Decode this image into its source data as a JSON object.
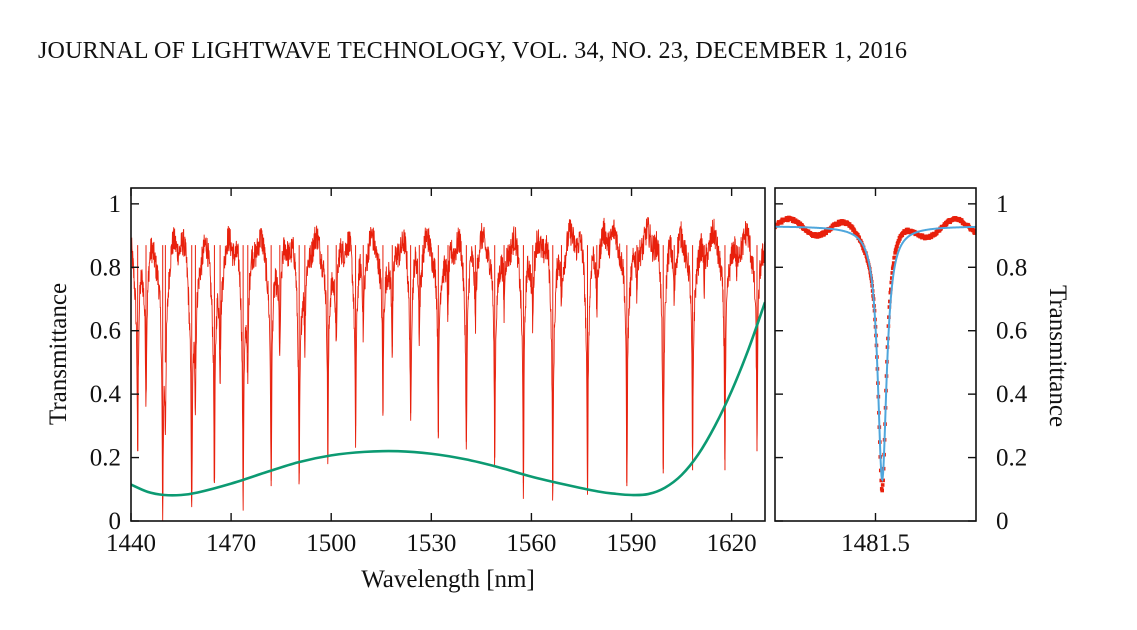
{
  "header": {
    "running_title": "JOURNAL OF LIGHTWAVE TECHNOLOGY, VOL. 34, NO. 23, DECEMBER 1, 2016"
  },
  "colors": {
    "measured": "#e8200c",
    "envelope": "#0c9a72",
    "fit": "#4fa6dc",
    "axes": "#111111"
  },
  "chart_data": [
    {
      "type": "line",
      "xlabel": "Wavelength [nm]",
      "ylabel": "Transmittance",
      "xlim": [
        1440,
        1630
      ],
      "ylim": [
        0,
        1.05
      ],
      "x_ticks": [
        1440,
        1470,
        1500,
        1530,
        1560,
        1590,
        1620
      ],
      "y_ticks": [
        0,
        0.2,
        0.4,
        0.6,
        0.8,
        1
      ],
      "y_tick_labels": [
        "0",
        "0.2",
        "0.4",
        "0.6",
        "0.8",
        "1"
      ],
      "series": [
        {
          "style": "noisy-transmission",
          "color": "#e8200c",
          "baseline": 0.92,
          "resonances": [
            {
              "x": 1442.0,
              "min": 0.22
            },
            {
              "x": 1444.5,
              "min": 0.45
            },
            {
              "x": 1449.5,
              "min": 0.07
            },
            {
              "x": 1450.3,
              "min": 0.5
            },
            {
              "x": 1458.2,
              "min": 0.1
            },
            {
              "x": 1459.3,
              "min": 0.48
            },
            {
              "x": 1465.0,
              "min": 0.13
            },
            {
              "x": 1466.7,
              "min": 0.54
            },
            {
              "x": 1473.6,
              "min": 0.13
            },
            {
              "x": 1475.0,
              "min": 0.53
            },
            {
              "x": 1482.0,
              "min": 0.11
            },
            {
              "x": 1484.6,
              "min": 0.56
            },
            {
              "x": 1490.4,
              "min": 0.15
            },
            {
              "x": 1492.1,
              "min": 0.6
            },
            {
              "x": 1499.0,
              "min": 0.2
            },
            {
              "x": 1501.5,
              "min": 0.57
            },
            {
              "x": 1507.3,
              "min": 0.3
            },
            {
              "x": 1509.6,
              "min": 0.63
            },
            {
              "x": 1515.5,
              "min": 0.34
            },
            {
              "x": 1518.3,
              "min": 0.55
            },
            {
              "x": 1523.8,
              "min": 0.34
            },
            {
              "x": 1526.4,
              "min": 0.63
            },
            {
              "x": 1532.1,
              "min": 0.28
            },
            {
              "x": 1535.0,
              "min": 0.65
            },
            {
              "x": 1540.5,
              "min": 0.25
            },
            {
              "x": 1543.2,
              "min": 0.68
            },
            {
              "x": 1549.0,
              "min": 0.2
            },
            {
              "x": 1551.8,
              "min": 0.67
            },
            {
              "x": 1557.6,
              "min": 0.12
            },
            {
              "x": 1560.4,
              "min": 0.68
            },
            {
              "x": 1566.4,
              "min": 0.11
            },
            {
              "x": 1569.0,
              "min": 0.7
            },
            {
              "x": 1576.8,
              "min": 0.12
            },
            {
              "x": 1579.6,
              "min": 0.72
            },
            {
              "x": 1588.6,
              "min": 0.11
            },
            {
              "x": 1591.6,
              "min": 0.73
            },
            {
              "x": 1599.5,
              "min": 0.15
            },
            {
              "x": 1602.8,
              "min": 0.74
            },
            {
              "x": 1608.3,
              "min": 0.16
            },
            {
              "x": 1611.8,
              "min": 0.75
            },
            {
              "x": 1618.0,
              "min": 0.16
            },
            {
              "x": 1621.5,
              "min": 0.77
            },
            {
              "x": 1627.6,
              "min": 0.22
            }
          ]
        },
        {
          "style": "smooth",
          "color": "#0c9a72",
          "x": [
            1440,
            1445,
            1450,
            1455,
            1460,
            1470,
            1480,
            1490,
            1500,
            1510,
            1520,
            1530,
            1540,
            1550,
            1560,
            1570,
            1580,
            1585,
            1590,
            1595,
            1600,
            1605,
            1610,
            1615,
            1620,
            1625,
            1630
          ],
          "y": [
            0.115,
            0.092,
            0.082,
            0.082,
            0.09,
            0.118,
            0.152,
            0.185,
            0.207,
            0.218,
            0.22,
            0.212,
            0.195,
            0.17,
            0.14,
            0.115,
            0.093,
            0.086,
            0.082,
            0.085,
            0.105,
            0.145,
            0.21,
            0.3,
            0.41,
            0.54,
            0.69
          ]
        }
      ]
    },
    {
      "type": "line",
      "xlabel": "",
      "ylabel": "Transmittance",
      "xlim": [
        1481.38,
        1481.62
      ],
      "ylim": [
        0,
        1.05
      ],
      "x_ticks": [
        1481.5
      ],
      "x_tick_labels": [
        "1481.5"
      ],
      "y_ticks": [
        0,
        0.2,
        0.4,
        0.6,
        0.8,
        1
      ],
      "y_tick_labels": [
        "0",
        "0.2",
        "0.4",
        "0.6",
        "0.8",
        "1"
      ],
      "series": [
        {
          "style": "markers",
          "color": "#e8200c",
          "center": 1481.508,
          "linewidth": 0.006,
          "dip_min": 0.11,
          "baseline": 0.93,
          "ripple": 0.025
        },
        {
          "style": "lorentzian-fit",
          "color": "#4fa6dc",
          "center": 1481.508,
          "linewidth": 0.0065,
          "dip_min": 0.13,
          "baseline": 0.93
        }
      ]
    }
  ]
}
